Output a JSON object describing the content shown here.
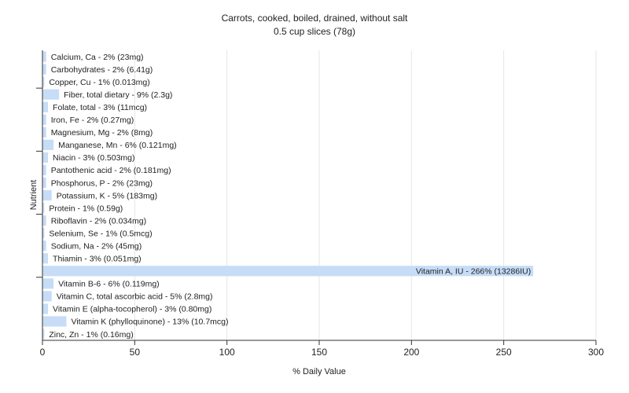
{
  "chart_data": {
    "type": "bar",
    "orientation": "horizontal",
    "title": "Carrots, cooked, boiled, drained, without salt",
    "subtitle": "0.5 cup slices (78g)",
    "xlabel": "% Daily Value",
    "ylabel": "Nutrient",
    "xlim": [
      0,
      300
    ],
    "xticks": [
      0,
      50,
      100,
      150,
      200,
      250,
      300
    ],
    "grid": true,
    "bar_color": "#c6dcf7",
    "categories": [
      "Calcium, Ca - 2% (23mg)",
      "Carbohydrates - 2% (6.41g)",
      "Copper, Cu - 1% (0.013mg)",
      "Fiber, total dietary - 9% (2.3g)",
      "Folate, total - 3% (11mcg)",
      "Iron, Fe - 2% (0.27mg)",
      "Magnesium, Mg - 2% (8mg)",
      "Manganese, Mn - 6% (0.121mg)",
      "Niacin - 3% (0.503mg)",
      "Pantothenic acid - 2% (0.181mg)",
      "Phosphorus, P - 2% (23mg)",
      "Potassium, K - 5% (183mg)",
      "Protein - 1% (0.59g)",
      "Riboflavin - 2% (0.034mg)",
      "Selenium, Se - 1% (0.5mcg)",
      "Sodium, Na - 2% (45mg)",
      "Thiamin - 3% (0.051mg)",
      "Vitamin A, IU - 266% (13286IU)",
      "Vitamin B-6 - 6% (0.119mg)",
      "Vitamin C, total ascorbic acid - 5% (2.8mg)",
      "Vitamin E (alpha-tocopherol) - 3% (0.80mg)",
      "Vitamin K (phylloquinone) - 13% (10.7mcg)",
      "Zinc, Zn - 1% (0.16mg)"
    ],
    "values": [
      2,
      2,
      1,
      9,
      3,
      2,
      2,
      6,
      3,
      2,
      2,
      5,
      1,
      2,
      1,
      2,
      3,
      266,
      6,
      5,
      3,
      13,
      1
    ]
  }
}
